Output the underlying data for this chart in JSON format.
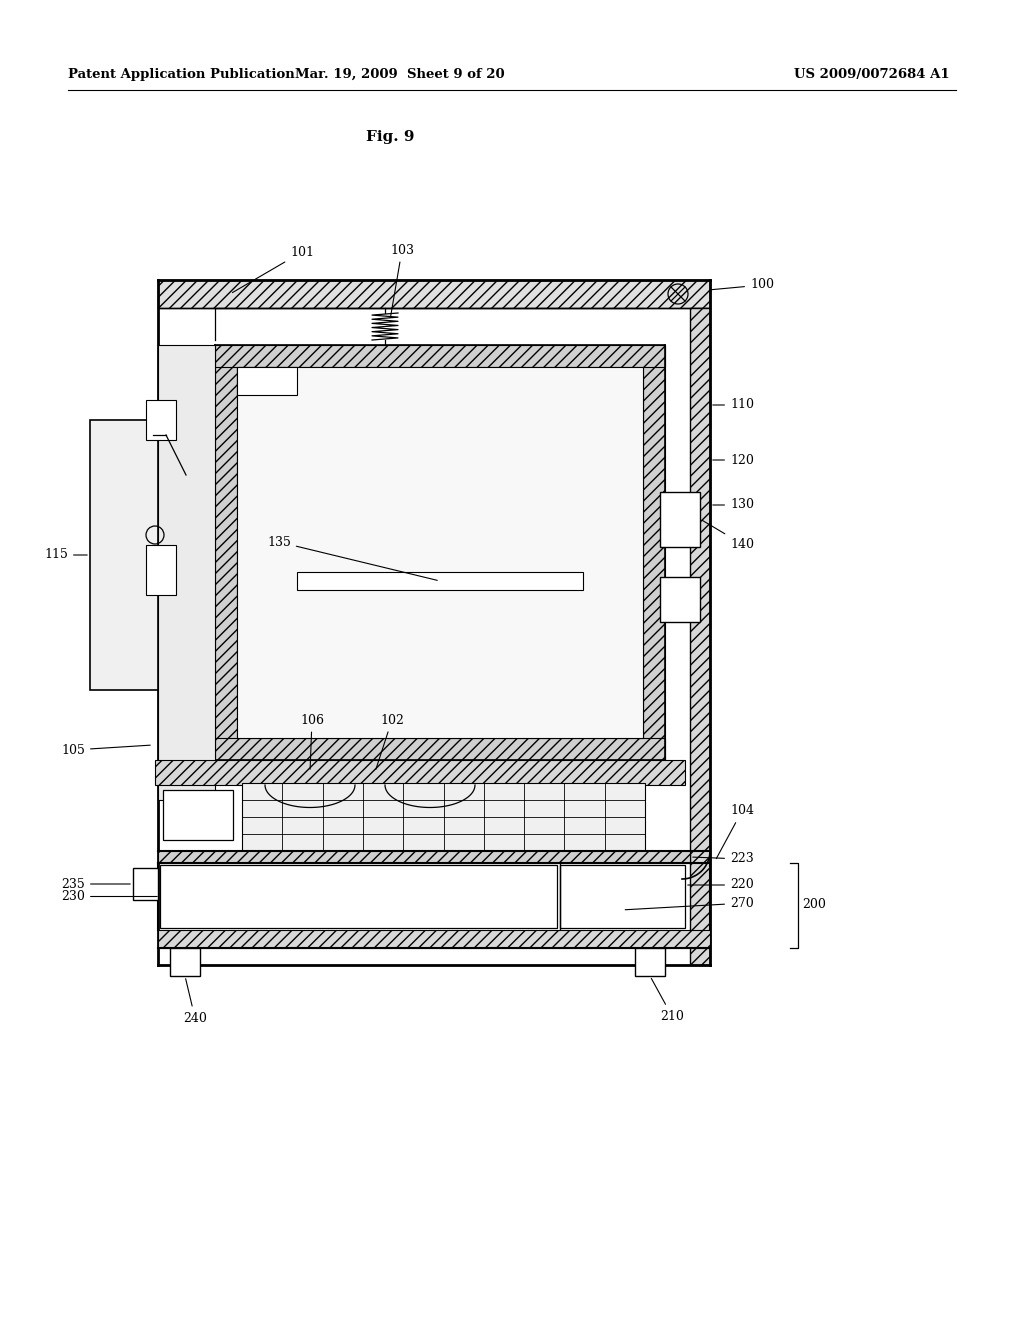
{
  "bg_color": "#ffffff",
  "line_color": "#000000",
  "header_left": "Patent Application Publication",
  "header_mid": "Mar. 19, 2009  Sheet 9 of 20",
  "header_right": "US 2009/0072684 A1",
  "fig_label": "Fig. 9"
}
